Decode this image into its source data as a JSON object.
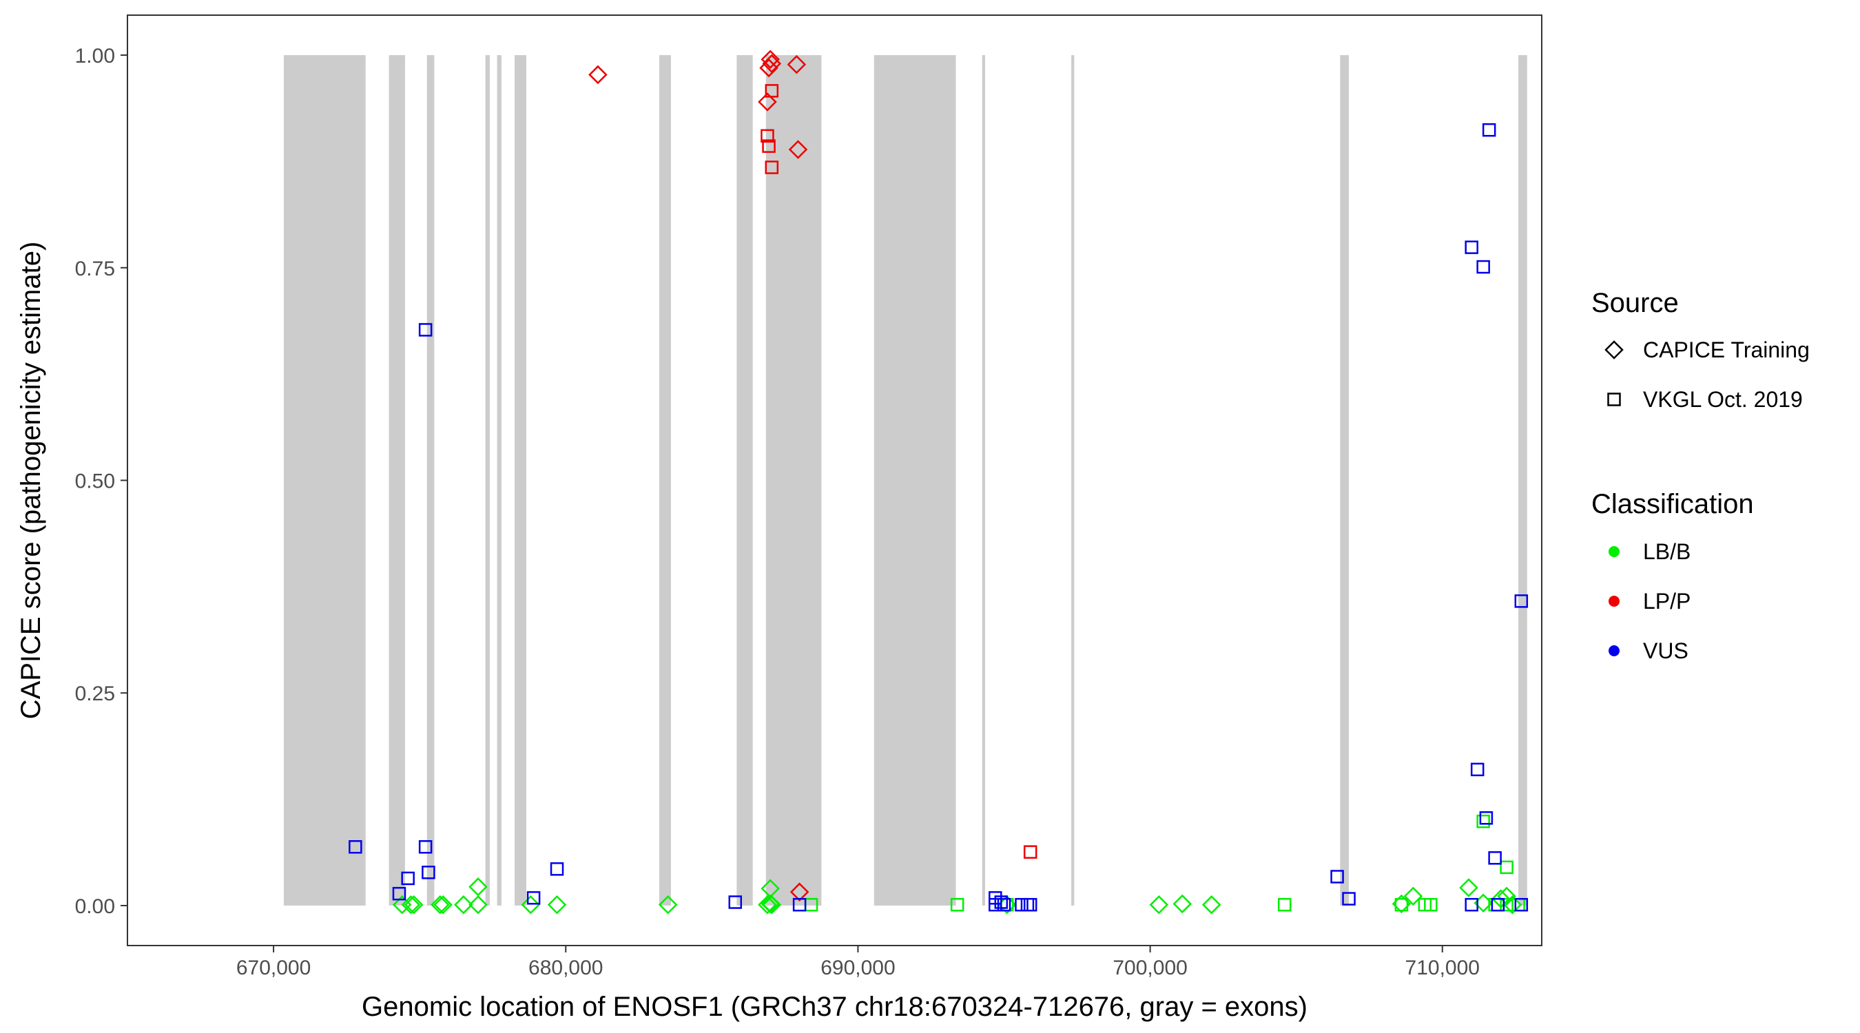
{
  "chart_data": {
    "type": "scatter",
    "xlabel": "Genomic location of ENOSF1 (GRCh37 chr18:670324-712676, gray = exons)",
    "ylabel": "CAPICE score (pathogenicity estimate)",
    "xlim": [
      665000,
      713400
    ],
    "ylim": [
      -0.047,
      1.047
    ],
    "x_ticks": [
      670000,
      680000,
      690000,
      700000,
      710000
    ],
    "x_tick_labels": [
      "670,000",
      "680,000",
      "690,000",
      "700,000",
      "710,000"
    ],
    "y_ticks": [
      0,
      0.25,
      0.5,
      0.75,
      1
    ],
    "y_tick_labels": [
      "0.00",
      "0.25",
      "0.50",
      "0.75",
      "1.00"
    ],
    "grid": false,
    "exons": [
      [
        670350,
        673150
      ],
      [
        673950,
        674500
      ],
      [
        675250,
        675500
      ],
      [
        677250,
        677400
      ],
      [
        677650,
        677800
      ],
      [
        678250,
        678650
      ],
      [
        683200,
        683600
      ],
      [
        685850,
        686400
      ],
      [
        686850,
        688750
      ],
      [
        690550,
        693350
      ],
      [
        694250,
        694350
      ],
      [
        697300,
        697400
      ],
      [
        706500,
        706800
      ],
      [
        712600,
        712900
      ]
    ],
    "exon_color": "#cccccc",
    "legend": {
      "placement": "right",
      "source_title": "Source",
      "source_entries": [
        {
          "label": "CAPICE Training",
          "shape": "diamond"
        },
        {
          "label": "VKGL Oct. 2019",
          "shape": "square"
        }
      ],
      "class_title": "Classification",
      "class_entries": [
        {
          "label": "LB/B",
          "color": "#00ee00"
        },
        {
          "label": "LP/P",
          "color": "#ee0000"
        },
        {
          "label": "VUS",
          "color": "#0000ee"
        }
      ]
    },
    "series": [
      {
        "source": "CAPICE Training",
        "classification": "LB/B",
        "points": [
          [
            674400,
            0.001
          ],
          [
            674700,
            0.001
          ],
          [
            674800,
            0.001
          ],
          [
            675700,
            0.001
          ],
          [
            675800,
            0.001
          ],
          [
            676500,
            0.001
          ],
          [
            677000,
            0.022
          ],
          [
            677000,
            0.001
          ],
          [
            678800,
            0.001
          ],
          [
            679700,
            0.001
          ],
          [
            683500,
            0.001
          ],
          [
            686900,
            0.001
          ],
          [
            687000,
            0.002
          ],
          [
            687000,
            0.02
          ],
          [
            687050,
            0.001
          ],
          [
            695100,
            0.001
          ],
          [
            700300,
            0.001
          ],
          [
            701100,
            0.002
          ],
          [
            702100,
            0.001
          ],
          [
            708600,
            0.002
          ],
          [
            709000,
            0.011
          ],
          [
            710900,
            0.021
          ],
          [
            711400,
            0.003
          ],
          [
            712000,
            0.008
          ],
          [
            712200,
            0.011
          ],
          [
            712400,
            0.001
          ]
        ]
      },
      {
        "source": "CAPICE Training",
        "classification": "LP/P",
        "points": [
          [
            681100,
            0.977
          ],
          [
            686900,
            0.945
          ],
          [
            686950,
            0.985
          ],
          [
            687000,
            0.995
          ],
          [
            687050,
            0.99
          ],
          [
            687900,
            0.989
          ],
          [
            687950,
            0.889
          ],
          [
            688000,
            0.016
          ]
        ]
      },
      {
        "source": "VKGL Oct. 2019",
        "classification": "LB/B",
        "points": [
          [
            688400,
            0.001
          ],
          [
            693400,
            0.001
          ],
          [
            695100,
            0.001
          ],
          [
            704600,
            0.001
          ],
          [
            708600,
            0.001
          ],
          [
            709400,
            0.001
          ],
          [
            709600,
            0.001
          ],
          [
            711400,
            0.099
          ],
          [
            711800,
            0.001
          ],
          [
            712200,
            0.045
          ],
          [
            712300,
            0.001
          ],
          [
            712600,
            0.001
          ]
        ]
      },
      {
        "source": "VKGL Oct. 2019",
        "classification": "LP/P",
        "points": [
          [
            686900,
            0.905
          ],
          [
            686950,
            0.893
          ],
          [
            687050,
            0.958
          ],
          [
            687050,
            0.868
          ],
          [
            695900,
            0.063
          ]
        ]
      },
      {
        "source": "VKGL Oct. 2019",
        "classification": "VUS",
        "points": [
          [
            672800,
            0.069
          ],
          [
            674300,
            0.014
          ],
          [
            674600,
            0.032
          ],
          [
            675200,
            0.677
          ],
          [
            675200,
            0.069
          ],
          [
            675300,
            0.039
          ],
          [
            678900,
            0.009
          ],
          [
            679700,
            0.043
          ],
          [
            685800,
            0.004
          ],
          [
            688000,
            0.001
          ],
          [
            694700,
            0.009
          ],
          [
            694700,
            0.001
          ],
          [
            694900,
            0.004
          ],
          [
            695000,
            0.001
          ],
          [
            695600,
            0.001
          ],
          [
            695800,
            0.001
          ],
          [
            695900,
            0.001
          ],
          [
            706400,
            0.034
          ],
          [
            706800,
            0.008
          ],
          [
            711000,
            0.774
          ],
          [
            711000,
            0.001
          ],
          [
            711200,
            0.16
          ],
          [
            711400,
            0.751
          ],
          [
            711500,
            0.103
          ],
          [
            711600,
            0.912
          ],
          [
            711800,
            0.056
          ],
          [
            711900,
            0.001
          ],
          [
            712700,
            0.358
          ],
          [
            712700,
            0.001
          ]
        ]
      }
    ]
  }
}
